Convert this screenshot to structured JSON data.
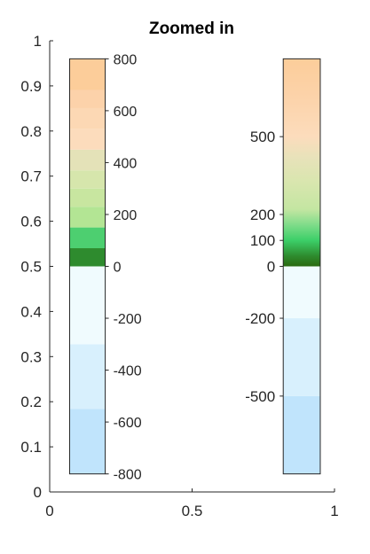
{
  "chart_data": {
    "type": "colorbar",
    "title": "Zoomed in",
    "xlim": [
      0,
      1
    ],
    "ylim": [
      0,
      1
    ],
    "x_ticks": [
      0,
      0.5,
      1
    ],
    "x_tick_labels": [
      "0",
      "0.5",
      "1"
    ],
    "y_ticks": [
      0,
      0.1,
      0.2,
      0.3,
      0.4,
      0.5,
      0.6,
      0.7,
      0.8,
      0.9,
      1
    ],
    "y_tick_labels": [
      "0",
      "0.1",
      "0.2",
      "0.3",
      "0.4",
      "0.5",
      "0.6",
      "0.7",
      "0.8",
      "0.9",
      "1"
    ],
    "colorbars": [
      {
        "name": "left-colorbar",
        "x_range": [
          0.07,
          0.195
        ],
        "y_range": [
          0.04,
          0.96
        ],
        "data_range": [
          -800,
          800
        ],
        "ticks": [
          -800,
          -600,
          -400,
          -200,
          0,
          200,
          400,
          600,
          800
        ],
        "tick_labels": [
          "-800",
          "-600",
          "-400",
          "-200",
          "0",
          "200",
          "400",
          "600",
          "800"
        ],
        "segments": [
          {
            "from": -800,
            "to": -550,
            "color": "#c0e4fc"
          },
          {
            "from": -550,
            "to": -300,
            "color": "#d8f0fd"
          },
          {
            "from": -300,
            "to": 0,
            "color": "#f0fbfe"
          },
          {
            "from": 0,
            "to": 70,
            "color": "#2e8b2e"
          },
          {
            "from": 70,
            "to": 150,
            "color": "#4dcf70"
          },
          {
            "from": 150,
            "to": 230,
            "color": "#b3e594"
          },
          {
            "from": 230,
            "to": 300,
            "color": "#c8e6a0"
          },
          {
            "from": 300,
            "to": 370,
            "color": "#d6e6ac"
          },
          {
            "from": 370,
            "to": 450,
            "color": "#e4e2b8"
          },
          {
            "from": 450,
            "to": 530,
            "color": "#fcdcbc"
          },
          {
            "from": 530,
            "to": 610,
            "color": "#fcd8b4"
          },
          {
            "from": 610,
            "to": 680,
            "color": "#fcd2aa"
          },
          {
            "from": 680,
            "to": 800,
            "color": "#fccd9a"
          }
        ]
      },
      {
        "name": "right-colorbar",
        "x_range": [
          0.82,
          0.95
        ],
        "y_range": [
          0.04,
          0.96
        ],
        "data_range": [
          -800,
          800
        ],
        "ticks": [
          -500,
          -200,
          0,
          100,
          200,
          500
        ],
        "tick_labels": [
          "-500",
          "-200",
          "0",
          "100",
          "200",
          "500"
        ],
        "segments": [
          {
            "from": -800,
            "to": -500,
            "color": "#c0e4fc"
          },
          {
            "from": -500,
            "to": -200,
            "color": "#d8f0fd"
          },
          {
            "from": -200,
            "to": 0,
            "color": "#f0fbfe"
          }
        ],
        "gradient": [
          {
            "value": 0,
            "color": "#2a6a10"
          },
          {
            "value": 40,
            "color": "#2e8b2e"
          },
          {
            "value": 100,
            "color": "#3ccf68"
          },
          {
            "value": 160,
            "color": "#7fdc8a"
          },
          {
            "value": 220,
            "color": "#c4e6a2"
          },
          {
            "value": 320,
            "color": "#d8e6ae"
          },
          {
            "value": 420,
            "color": "#e8e2ba"
          },
          {
            "value": 500,
            "color": "#fcdcbc"
          },
          {
            "value": 650,
            "color": "#fcd3aa"
          },
          {
            "value": 800,
            "color": "#fccd9a"
          }
        ]
      }
    ]
  }
}
